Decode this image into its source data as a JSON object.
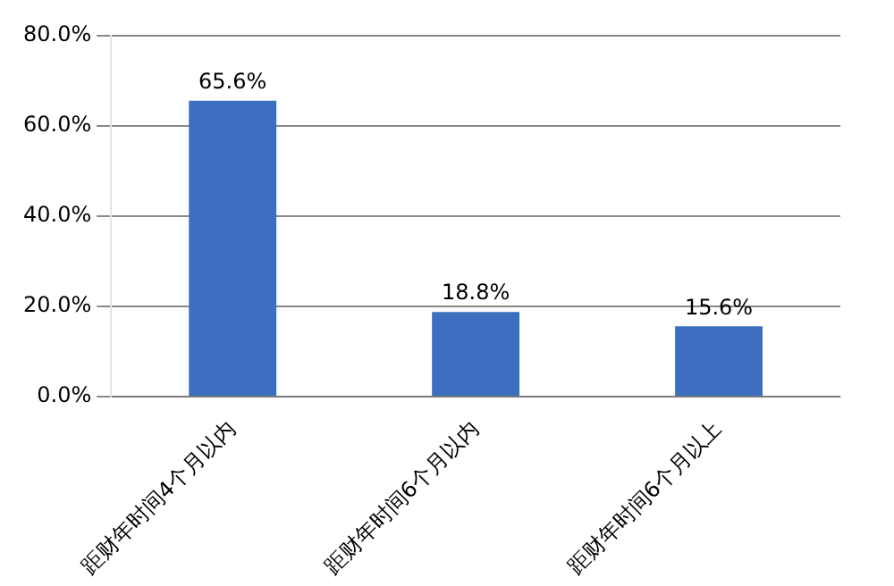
{
  "chart_data": {
    "type": "bar",
    "categories": [
      "距财年时间4个月以内",
      "距财年时间6个月以内",
      "距财年时间6个月以上"
    ],
    "values": [
      65.6,
      18.8,
      15.6
    ],
    "value_labels": [
      "65.6%",
      "18.8%",
      "15.6%"
    ],
    "color": "#3d6fc0",
    "ylim": [
      0,
      80
    ],
    "yticks": [
      {
        "value": 0,
        "label": "0.0%"
      },
      {
        "value": 20,
        "label": "20.0%"
      },
      {
        "value": 40,
        "label": "40.0%"
      },
      {
        "value": 60,
        "label": "60.0%"
      },
      {
        "value": 80,
        "label": "80.0%"
      }
    ],
    "grid": "y"
  }
}
